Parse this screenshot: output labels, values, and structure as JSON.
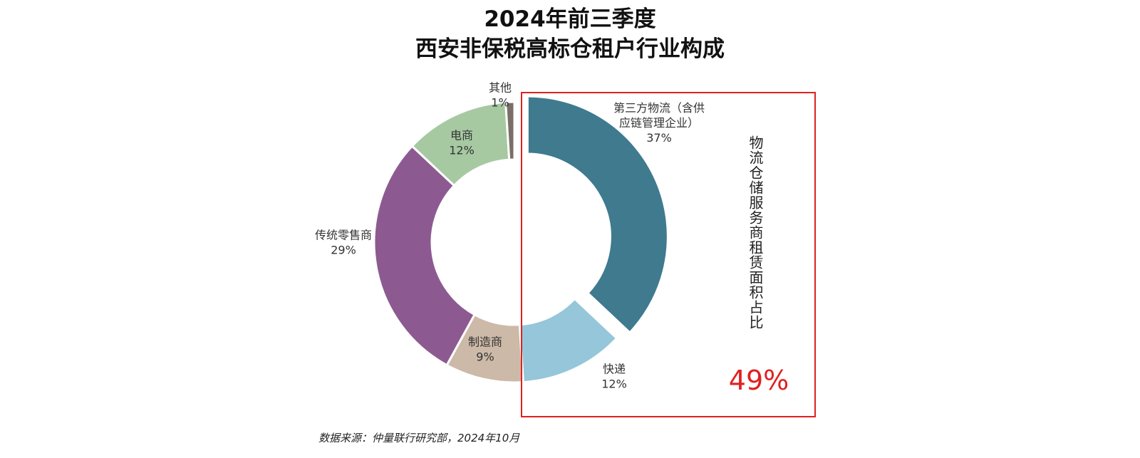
{
  "title": {
    "line1": "2024年前三季度",
    "line2": "西安非保税高标仓租户行业构成"
  },
  "chart_data": {
    "type": "pie",
    "donut": true,
    "categories": [
      "第三方物流（含供应链管理企业）",
      "快递",
      "制造商",
      "传统零售商",
      "电商",
      "其他"
    ],
    "values": [
      37,
      12,
      9,
      29,
      12,
      1
    ],
    "labels": [
      {
        "name_lines": [
          "第三方物流（含供",
          "应链管理企业）"
        ],
        "pct": "37%"
      },
      {
        "name_lines": [
          "快递"
        ],
        "pct": "12%"
      },
      {
        "name_lines": [
          "制造商"
        ],
        "pct": "9%"
      },
      {
        "name_lines": [
          "传统零售商"
        ],
        "pct": "29%"
      },
      {
        "name_lines": [
          "电商"
        ],
        "pct": "12%"
      },
      {
        "name_lines": [
          "其他"
        ],
        "pct": "1%"
      }
    ],
    "colors": [
      "#3f7a8f",
      "#95c6d9",
      "#cdb9a8",
      "#8c5a91",
      "#a6c9a2",
      "#7a6e68"
    ],
    "exploded_slice": "第三方物流（含供应链管理企业）"
  },
  "highlight": {
    "label": "物流仓储服务商租赁面积占比",
    "value": "49%",
    "color": "#e02020"
  },
  "source": "数据来源：仲量联行研究部，2024年10月"
}
